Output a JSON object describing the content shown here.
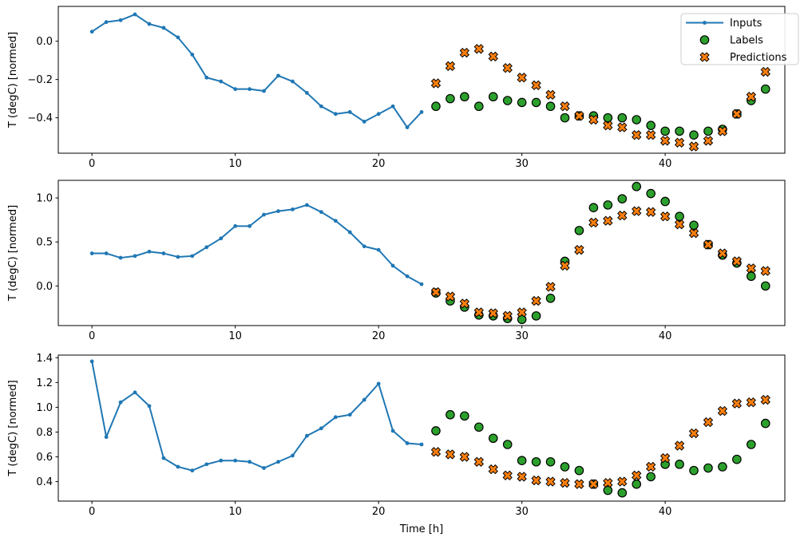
{
  "figure": {
    "xlabel": "Time [h]",
    "ylabel": "T (degC) [normed]",
    "background_color": "#ffffff",
    "text_color": "#000000",
    "spine_color": "#000000"
  },
  "legend": {
    "position": "top-right-of-first-subplot",
    "items": [
      {
        "label": "Inputs",
        "marker": "line-dot-icon",
        "color": "#1f77b4"
      },
      {
        "label": "Labels",
        "marker": "circle-icon",
        "color": "#2ca02c",
        "edge_color": "#000000"
      },
      {
        "label": "Predictions",
        "marker": "x-icon",
        "color": "#ff7f0e",
        "edge_color": "#000000"
      }
    ]
  },
  "chart_data": [
    {
      "type": "line",
      "subplot": 1,
      "title": "",
      "xlabel": "",
      "ylabel": "T (degC) [normed]",
      "grid": false,
      "xlim": [
        -2.35,
        48.35
      ],
      "ylim": [
        -0.585,
        0.182
      ],
      "xticks": [
        0,
        10,
        20,
        30,
        40
      ],
      "yticks": [
        {
          "value": 0.0,
          "label": "0.0"
        },
        {
          "value": -0.2,
          "label": "−0.2"
        },
        {
          "value": -0.4,
          "label": "−0.4"
        }
      ],
      "series": [
        {
          "name": "Inputs",
          "type": "line",
          "color": "#1f77b4",
          "x": [
            0,
            1,
            2,
            3,
            4,
            5,
            6,
            7,
            8,
            9,
            10,
            11,
            12,
            13,
            14,
            15,
            16,
            17,
            18,
            19,
            20,
            21,
            22,
            23
          ],
          "y": [
            0.05,
            0.1,
            0.11,
            0.14,
            0.09,
            0.07,
            0.02,
            -0.07,
            -0.19,
            -0.21,
            -0.25,
            -0.25,
            -0.26,
            -0.18,
            -0.21,
            -0.27,
            -0.34,
            -0.38,
            -0.37,
            -0.42,
            -0.38,
            -0.34,
            -0.45,
            -0.37
          ]
        },
        {
          "name": "Labels",
          "type": "scatter",
          "marker": "circle",
          "color": "#2ca02c",
          "edge_color": "#000000",
          "x": [
            24,
            25,
            26,
            27,
            28,
            29,
            30,
            31,
            32,
            33,
            34,
            35,
            36,
            37,
            38,
            39,
            40,
            41,
            42,
            43,
            44,
            45,
            46,
            47
          ],
          "y": [
            -0.34,
            -0.3,
            -0.29,
            -0.34,
            -0.29,
            -0.31,
            -0.32,
            -0.32,
            -0.34,
            -0.4,
            -0.39,
            -0.39,
            -0.4,
            -0.4,
            -0.41,
            -0.44,
            -0.47,
            -0.47,
            -0.49,
            -0.47,
            -0.46,
            -0.38,
            -0.31,
            -0.25
          ]
        },
        {
          "name": "Predictions",
          "type": "scatter",
          "marker": "X",
          "color": "#ff7f0e",
          "edge_color": "#000000",
          "x": [
            24,
            25,
            26,
            27,
            28,
            29,
            30,
            31,
            32,
            33,
            34,
            35,
            36,
            37,
            38,
            39,
            40,
            41,
            42,
            43,
            44,
            45,
            46,
            47
          ],
          "y": [
            -0.22,
            -0.13,
            -0.06,
            -0.04,
            -0.08,
            -0.14,
            -0.19,
            -0.23,
            -0.28,
            -0.34,
            -0.39,
            -0.41,
            -0.44,
            -0.45,
            -0.49,
            -0.49,
            -0.52,
            -0.53,
            -0.55,
            -0.52,
            -0.47,
            -0.38,
            -0.29,
            -0.16
          ]
        }
      ]
    },
    {
      "type": "line",
      "subplot": 2,
      "title": "",
      "xlabel": "",
      "ylabel": "T (degC) [normed]",
      "grid": false,
      "xlim": [
        -2.35,
        48.35
      ],
      "ylim": [
        -0.45,
        1.2
      ],
      "xticks": [
        0,
        10,
        20,
        30,
        40
      ],
      "yticks": [
        {
          "value": 1.0,
          "label": "1.0"
        },
        {
          "value": 0.5,
          "label": "0.5"
        },
        {
          "value": 0.0,
          "label": "0.0"
        }
      ],
      "series": [
        {
          "name": "Inputs",
          "type": "line",
          "color": "#1f77b4",
          "x": [
            0,
            1,
            2,
            3,
            4,
            5,
            6,
            7,
            8,
            9,
            10,
            11,
            12,
            13,
            14,
            15,
            16,
            17,
            18,
            19,
            20,
            21,
            22,
            23
          ],
          "y": [
            0.37,
            0.37,
            0.32,
            0.34,
            0.39,
            0.37,
            0.33,
            0.34,
            0.44,
            0.54,
            0.68,
            0.68,
            0.81,
            0.85,
            0.87,
            0.92,
            0.84,
            0.74,
            0.61,
            0.45,
            0.41,
            0.23,
            0.11,
            0.02
          ]
        },
        {
          "name": "Labels",
          "type": "scatter",
          "marker": "circle",
          "color": "#2ca02c",
          "edge_color": "#000000",
          "x": [
            24,
            25,
            26,
            27,
            28,
            29,
            30,
            31,
            32,
            33,
            34,
            35,
            36,
            37,
            38,
            39,
            40,
            41,
            42,
            43,
            44,
            45,
            46,
            47
          ],
          "y": [
            -0.08,
            -0.17,
            -0.24,
            -0.33,
            -0.34,
            -0.37,
            -0.38,
            -0.34,
            -0.14,
            0.28,
            0.63,
            0.89,
            0.92,
            0.99,
            1.13,
            1.05,
            0.96,
            0.79,
            0.69,
            0.47,
            0.35,
            0.26,
            0.11,
            0.0
          ]
        },
        {
          "name": "Predictions",
          "type": "scatter",
          "marker": "X",
          "color": "#ff7f0e",
          "edge_color": "#000000",
          "x": [
            24,
            25,
            26,
            27,
            28,
            29,
            30,
            31,
            32,
            33,
            34,
            35,
            36,
            37,
            38,
            39,
            40,
            41,
            42,
            43,
            44,
            45,
            46,
            47
          ],
          "y": [
            -0.07,
            -0.12,
            -0.2,
            -0.3,
            -0.31,
            -0.34,
            -0.3,
            -0.17,
            -0.01,
            0.23,
            0.41,
            0.72,
            0.74,
            0.8,
            0.85,
            0.84,
            0.79,
            0.7,
            0.6,
            0.47,
            0.37,
            0.28,
            0.2,
            0.17
          ]
        }
      ]
    },
    {
      "type": "line",
      "subplot": 3,
      "title": "",
      "xlabel": "Time [h]",
      "ylabel": "T (degC) [normed]",
      "grid": false,
      "xlim": [
        -2.35,
        48.35
      ],
      "ylim": [
        0.243,
        1.421
      ],
      "xticks": [
        0,
        10,
        20,
        30,
        40
      ],
      "yticks": [
        {
          "value": 1.4,
          "label": "1.4"
        },
        {
          "value": 1.2,
          "label": "1.2"
        },
        {
          "value": 1.0,
          "label": "1.0"
        },
        {
          "value": 0.8,
          "label": "0.8"
        },
        {
          "value": 0.6,
          "label": "0.6"
        },
        {
          "value": 0.4,
          "label": "0.4"
        }
      ],
      "series": [
        {
          "name": "Inputs",
          "type": "line",
          "color": "#1f77b4",
          "x": [
            0,
            1,
            2,
            3,
            4,
            5,
            6,
            7,
            8,
            9,
            10,
            11,
            12,
            13,
            14,
            15,
            16,
            17,
            18,
            19,
            20,
            21,
            22,
            23
          ],
          "y": [
            1.37,
            0.76,
            1.04,
            1.12,
            1.01,
            0.59,
            0.52,
            0.49,
            0.54,
            0.57,
            0.57,
            0.56,
            0.51,
            0.56,
            0.61,
            0.77,
            0.83,
            0.92,
            0.94,
            1.06,
            1.19,
            0.81,
            0.71,
            0.7
          ]
        },
        {
          "name": "Labels",
          "type": "scatter",
          "marker": "circle",
          "color": "#2ca02c",
          "edge_color": "#000000",
          "x": [
            24,
            25,
            26,
            27,
            28,
            29,
            30,
            31,
            32,
            33,
            34,
            35,
            36,
            37,
            38,
            39,
            40,
            41,
            42,
            43,
            44,
            45,
            46,
            47
          ],
          "y": [
            0.81,
            0.94,
            0.93,
            0.84,
            0.75,
            0.7,
            0.57,
            0.56,
            0.56,
            0.52,
            0.49,
            0.38,
            0.33,
            0.31,
            0.38,
            0.44,
            0.54,
            0.54,
            0.49,
            0.51,
            0.52,
            0.58,
            0.7,
            0.87
          ]
        },
        {
          "name": "Predictions",
          "type": "scatter",
          "marker": "X",
          "color": "#ff7f0e",
          "edge_color": "#000000",
          "x": [
            24,
            25,
            26,
            27,
            28,
            29,
            30,
            31,
            32,
            33,
            34,
            35,
            36,
            37,
            38,
            39,
            40,
            41,
            42,
            43,
            44,
            45,
            46,
            47
          ],
          "y": [
            0.64,
            0.62,
            0.6,
            0.56,
            0.5,
            0.45,
            0.44,
            0.41,
            0.4,
            0.39,
            0.38,
            0.38,
            0.39,
            0.4,
            0.45,
            0.52,
            0.59,
            0.69,
            0.79,
            0.88,
            0.97,
            1.03,
            1.04,
            1.06
          ]
        }
      ]
    }
  ]
}
